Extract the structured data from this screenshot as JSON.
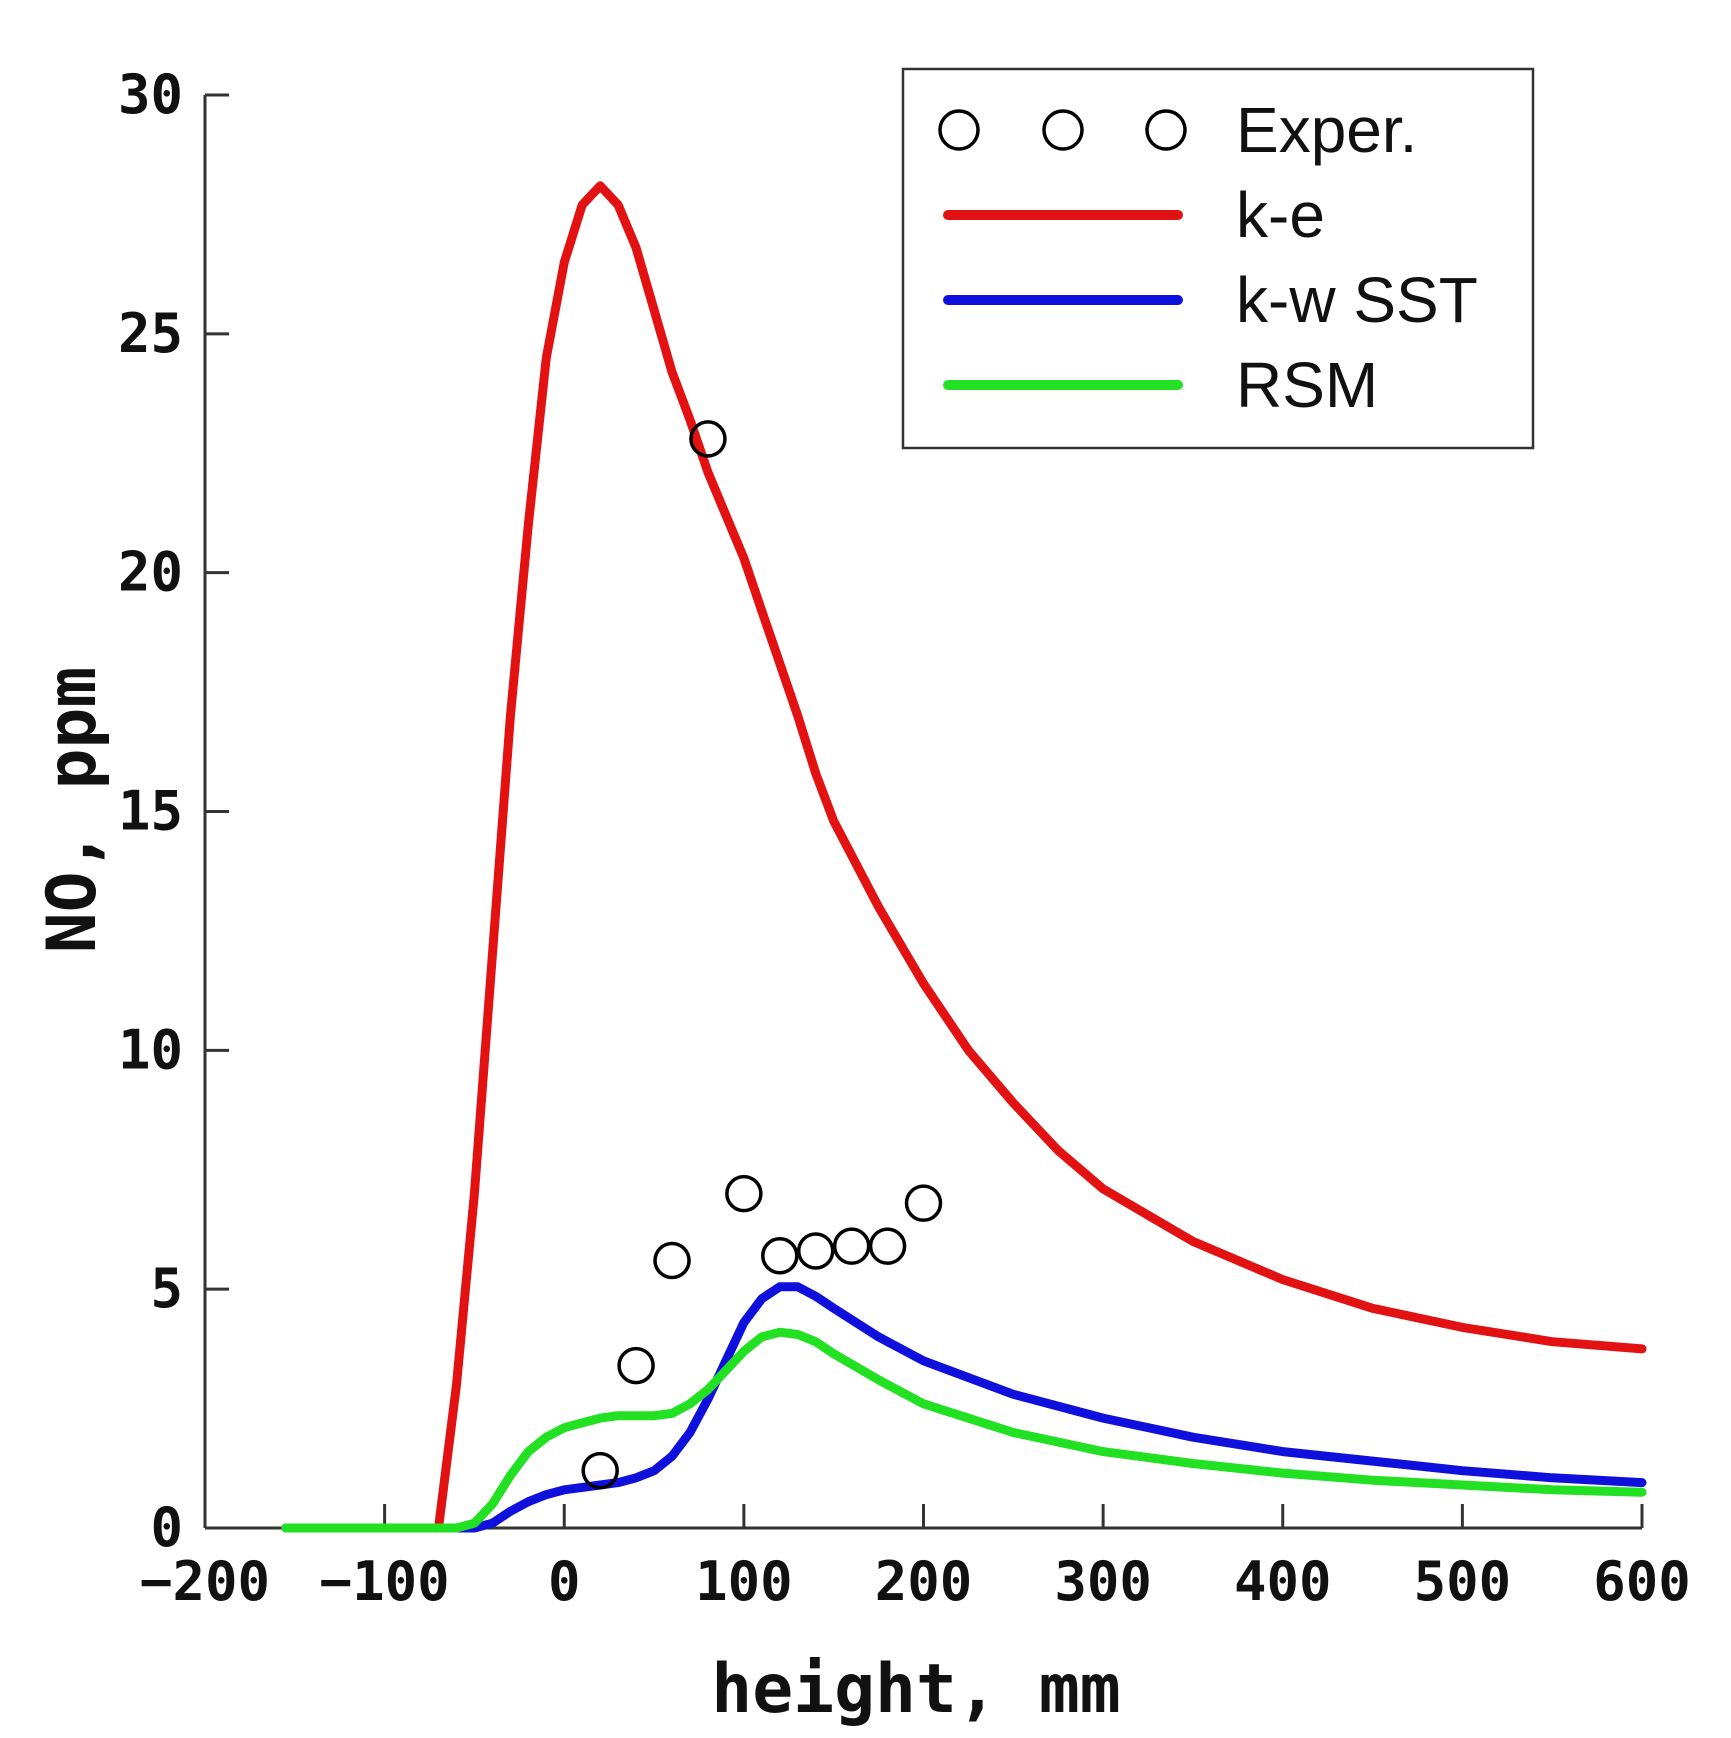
{
  "chart_data": {
    "type": "line",
    "title": "",
    "xlabel": "height, mm",
    "ylabel": "NO, ppm",
    "xlim": [
      -200,
      600
    ],
    "ylim": [
      0,
      30
    ],
    "xticks": [
      -200,
      -100,
      0,
      100,
      200,
      300,
      400,
      500,
      600
    ],
    "yticks": [
      0,
      5,
      10,
      15,
      20,
      25,
      30
    ],
    "xtick_labels": [
      "−200",
      "−100",
      "0",
      "100",
      "200",
      "300",
      "400",
      "500",
      "600"
    ],
    "ytick_labels": [
      "0",
      "5",
      "10",
      "15",
      "20",
      "25",
      "30"
    ],
    "grid": false,
    "legend_position": "top-right",
    "series": [
      {
        "name": "Exper.",
        "style": "markers",
        "marker": "circle",
        "color": "#000000",
        "x": [
          20,
          40,
          60,
          80,
          100,
          120,
          140,
          160,
          180,
          200
        ],
        "y": [
          1.2,
          3.4,
          5.6,
          22.8,
          7.0,
          5.7,
          5.8,
          5.9,
          5.9,
          6.8
        ]
      },
      {
        "name": "k-e",
        "style": "line",
        "color": "#e31212",
        "x": [
          -155,
          -70,
          -60,
          -50,
          -40,
          -30,
          -20,
          -10,
          0,
          10,
          20,
          30,
          40,
          50,
          60,
          70,
          80,
          90,
          100,
          110,
          120,
          130,
          140,
          150,
          175,
          200,
          225,
          250,
          275,
          300,
          350,
          400,
          450,
          500,
          550,
          600
        ],
        "y": [
          0,
          0,
          3,
          7,
          12,
          17,
          21,
          24.5,
          26.5,
          27.7,
          28.1,
          27.7,
          26.8,
          25.5,
          24.2,
          23.2,
          22.1,
          21.2,
          20.3,
          19.2,
          18.1,
          17.0,
          15.8,
          14.8,
          13.0,
          11.4,
          10.0,
          8.9,
          7.9,
          7.1,
          6.0,
          5.2,
          4.6,
          4.2,
          3.9,
          3.75
        ]
      },
      {
        "name": "k-w SST",
        "style": "line",
        "color": "#1010dd",
        "x": [
          -155,
          -50,
          -40,
          -30,
          -20,
          -10,
          0,
          10,
          20,
          30,
          40,
          50,
          60,
          70,
          80,
          90,
          100,
          110,
          120,
          130,
          140,
          150,
          175,
          200,
          250,
          300,
          350,
          400,
          450,
          500,
          550,
          600
        ],
        "y": [
          0,
          0,
          0.1,
          0.35,
          0.55,
          0.7,
          0.8,
          0.85,
          0.9,
          0.95,
          1.05,
          1.2,
          1.5,
          2.0,
          2.7,
          3.5,
          4.3,
          4.8,
          5.05,
          5.05,
          4.85,
          4.6,
          4.0,
          3.5,
          2.8,
          2.3,
          1.9,
          1.6,
          1.4,
          1.2,
          1.05,
          0.95
        ]
      },
      {
        "name": "RSM",
        "style": "line",
        "color": "#22e022",
        "x": [
          -155,
          -60,
          -50,
          -40,
          -30,
          -20,
          -10,
          0,
          10,
          20,
          30,
          40,
          50,
          60,
          70,
          80,
          90,
          100,
          110,
          120,
          130,
          140,
          150,
          175,
          200,
          250,
          300,
          350,
          400,
          450,
          500,
          550,
          600
        ],
        "y": [
          0,
          0,
          0.1,
          0.5,
          1.1,
          1.6,
          1.9,
          2.1,
          2.2,
          2.3,
          2.35,
          2.35,
          2.35,
          2.4,
          2.6,
          2.9,
          3.3,
          3.7,
          4.0,
          4.1,
          4.05,
          3.9,
          3.65,
          3.1,
          2.6,
          2.0,
          1.6,
          1.35,
          1.15,
          1.0,
          0.9,
          0.8,
          0.75
        ]
      }
    ]
  }
}
